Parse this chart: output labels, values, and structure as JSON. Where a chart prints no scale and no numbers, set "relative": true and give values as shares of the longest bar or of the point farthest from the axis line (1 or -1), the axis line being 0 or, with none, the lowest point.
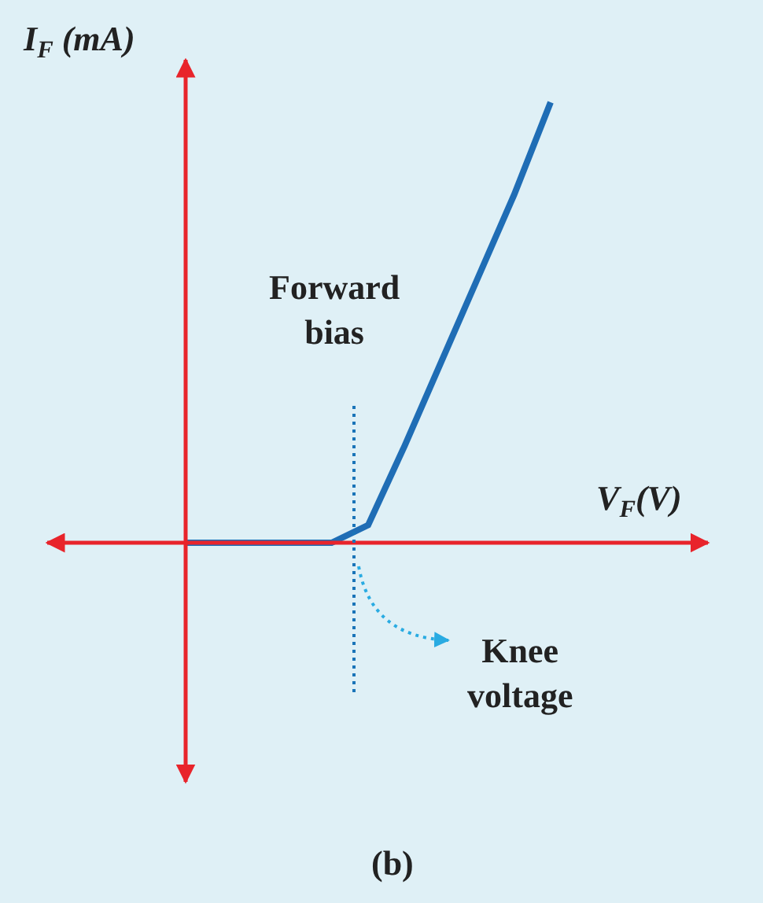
{
  "chart_data": {
    "type": "line",
    "relative": true,
    "xlabel": "V$_{F}$(V)",
    "ylabel": "I$_{F}$ (mA)",
    "categories": [
      null,
      null,
      null,
      null,
      null,
      null,
      null,
      null,
      null,
      null,
      null
    ],
    "values": [
      0,
      0,
      0,
      0,
      0,
      0.04,
      0.22,
      0.41,
      0.6,
      0.79,
      1
    ],
    "color": "#1f6db5",
    "line_style": "solid",
    "marker": "none",
    "annotations": [
      "Forward bias",
      "Knee voltage",
      "(b)"
    ]
  }
}
